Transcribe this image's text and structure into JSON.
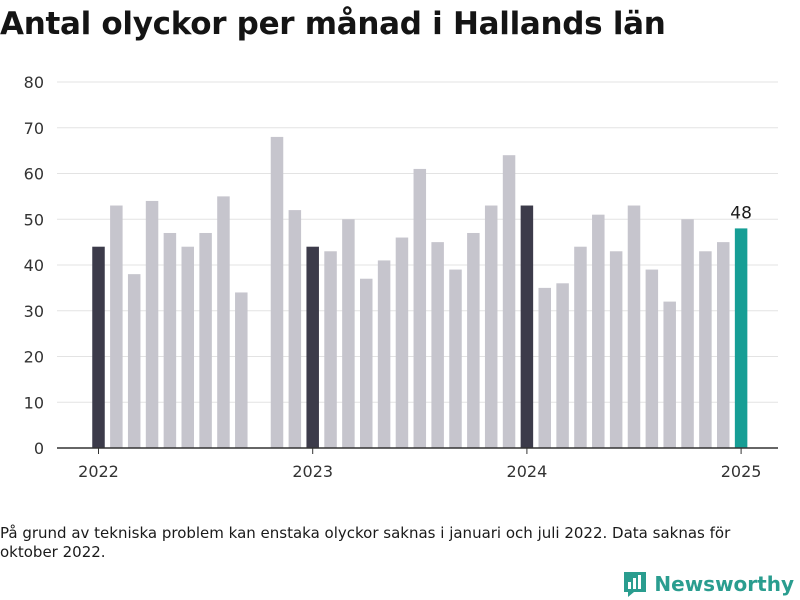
{
  "chart_data": {
    "type": "bar",
    "title": "Antal olyckor per månad i Hallands län",
    "xlabel": "",
    "ylabel": "",
    "ylim": [
      0,
      80
    ],
    "yticks": [
      0,
      10,
      20,
      30,
      40,
      50,
      60,
      70,
      80
    ],
    "x_tick_labels": [
      "2022",
      "2023",
      "2024",
      "2025"
    ],
    "grid": true,
    "colors": {
      "default": "#c6c5cd",
      "january": "#3c3b4a",
      "latest": "#169e95",
      "grid": "#e3e3e3",
      "axis": "#333333"
    },
    "months": [
      "2022-01",
      "2022-02",
      "2022-03",
      "2022-04",
      "2022-05",
      "2022-06",
      "2022-07",
      "2022-08",
      "2022-09",
      "2022-10",
      "2022-11",
      "2022-12",
      "2023-01",
      "2023-02",
      "2023-03",
      "2023-04",
      "2023-05",
      "2023-06",
      "2023-07",
      "2023-08",
      "2023-09",
      "2023-10",
      "2023-11",
      "2023-12",
      "2024-01",
      "2024-02",
      "2024-03",
      "2024-04",
      "2024-05",
      "2024-06",
      "2024-07",
      "2024-08",
      "2024-09",
      "2024-10",
      "2024-11",
      "2024-12",
      "2025-01"
    ],
    "values": [
      44,
      53,
      38,
      54,
      47,
      44,
      47,
      55,
      34,
      null,
      68,
      52,
      44,
      43,
      50,
      37,
      41,
      46,
      61,
      45,
      39,
      47,
      53,
      64,
      53,
      35,
      36,
      44,
      51,
      43,
      53,
      39,
      32,
      50,
      43,
      45,
      48
    ],
    "highlight_label": "48"
  },
  "footnote": "På grund av tekniska problem kan enstaka olyckor saknas i januari och juli 2022. Data saknas för oktober 2022.",
  "brand": {
    "name": "Newsworthy",
    "icon": "newsworthy-logo-icon"
  }
}
